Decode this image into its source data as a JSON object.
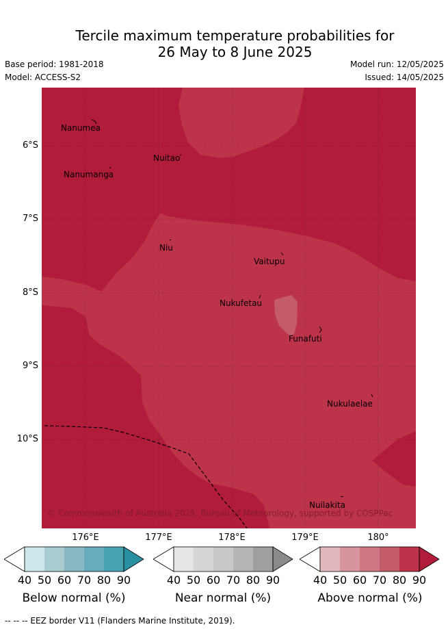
{
  "title_line1": "Tercile maximum temperature probabilities for",
  "title_line2": "26 May to 8 June 2025",
  "base_period": "Base period: 1981-2018",
  "model": "Model: ACCESS-S2",
  "model_run": "Model run: 12/05/2025",
  "issued": "Issued: 14/05/2025",
  "copyright": "© Commonwealth of Australia 2025, Bureau of Meteorology, supported by COSPPac",
  "lat_labels": [
    "6°S",
    "7°S",
    "8°S",
    "9°S",
    "10°S"
  ],
  "lon_labels": [
    "176°E",
    "177°E",
    "178°E",
    "179°E",
    "180°"
  ],
  "places": [
    {
      "name": "Nanumea"
    },
    {
      "name": "Nuitao"
    },
    {
      "name": "Nanumanga"
    },
    {
      "name": "Niu"
    },
    {
      "name": "Vaitupu"
    },
    {
      "name": "Nukufetau"
    },
    {
      "name": "Funafuti"
    },
    {
      "name": "Nukulaelae"
    },
    {
      "name": "Nuilakita"
    }
  ],
  "colorbars": [
    {
      "label": "Below normal (%)",
      "ticks": [
        "40",
        "50",
        "60",
        "70",
        "80",
        "90"
      ],
      "colors": [
        "#cde6ea",
        "#a9cbd1",
        "#89b8c4",
        "#68abbd",
        "#47a2b1",
        "#2a8fa0"
      ]
    },
    {
      "label": "Near normal (%)",
      "ticks": [
        "40",
        "50",
        "60",
        "70",
        "80",
        "90"
      ],
      "colors": [
        "#e5e5e5",
        "#d6d6d6",
        "#c8c8c8",
        "#b5b5b5",
        "#a0a0a0",
        "#8a8a8a"
      ]
    },
    {
      "label": "Above normal (%)",
      "ticks": [
        "40",
        "50",
        "60",
        "70",
        "80",
        "90"
      ],
      "colors": [
        "#e2b8bf",
        "#d6959e",
        "#cd7882",
        "#c45b68",
        "#bd3349",
        "#b11c3a"
      ]
    }
  ],
  "colors": {
    "above_90": "#b11c3a",
    "above_80": "#bd3349",
    "above_70": "#c45b68"
  },
  "footer": "--  --  -- EEZ border V11 (Flanders Marine Institute, 2019)."
}
